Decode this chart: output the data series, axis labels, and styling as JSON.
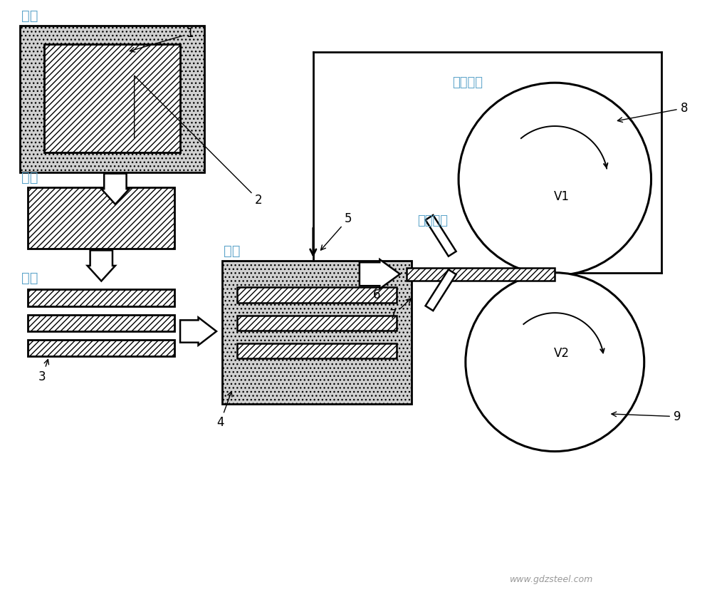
{
  "bg_color": "#ffffff",
  "labels": {
    "casting": "铸造",
    "sampling": "取样",
    "cutting": "切割",
    "deep_cool": "深冷",
    "async_rolling": "异步轧制",
    "liquid_n2": "液氮冷却",
    "v1": "V1",
    "v2": "V2",
    "num1": "1",
    "num2": "2",
    "num3": "3",
    "num4": "4",
    "num5": "5",
    "num6": "6",
    "num7": "7",
    "num8": "8",
    "num9": "9",
    "website": "www.gdzsteel.com"
  },
  "cn_label_color": "#5ba3c9",
  "line_color": "#000000",
  "dot_bg_color": "#d0d0d0"
}
